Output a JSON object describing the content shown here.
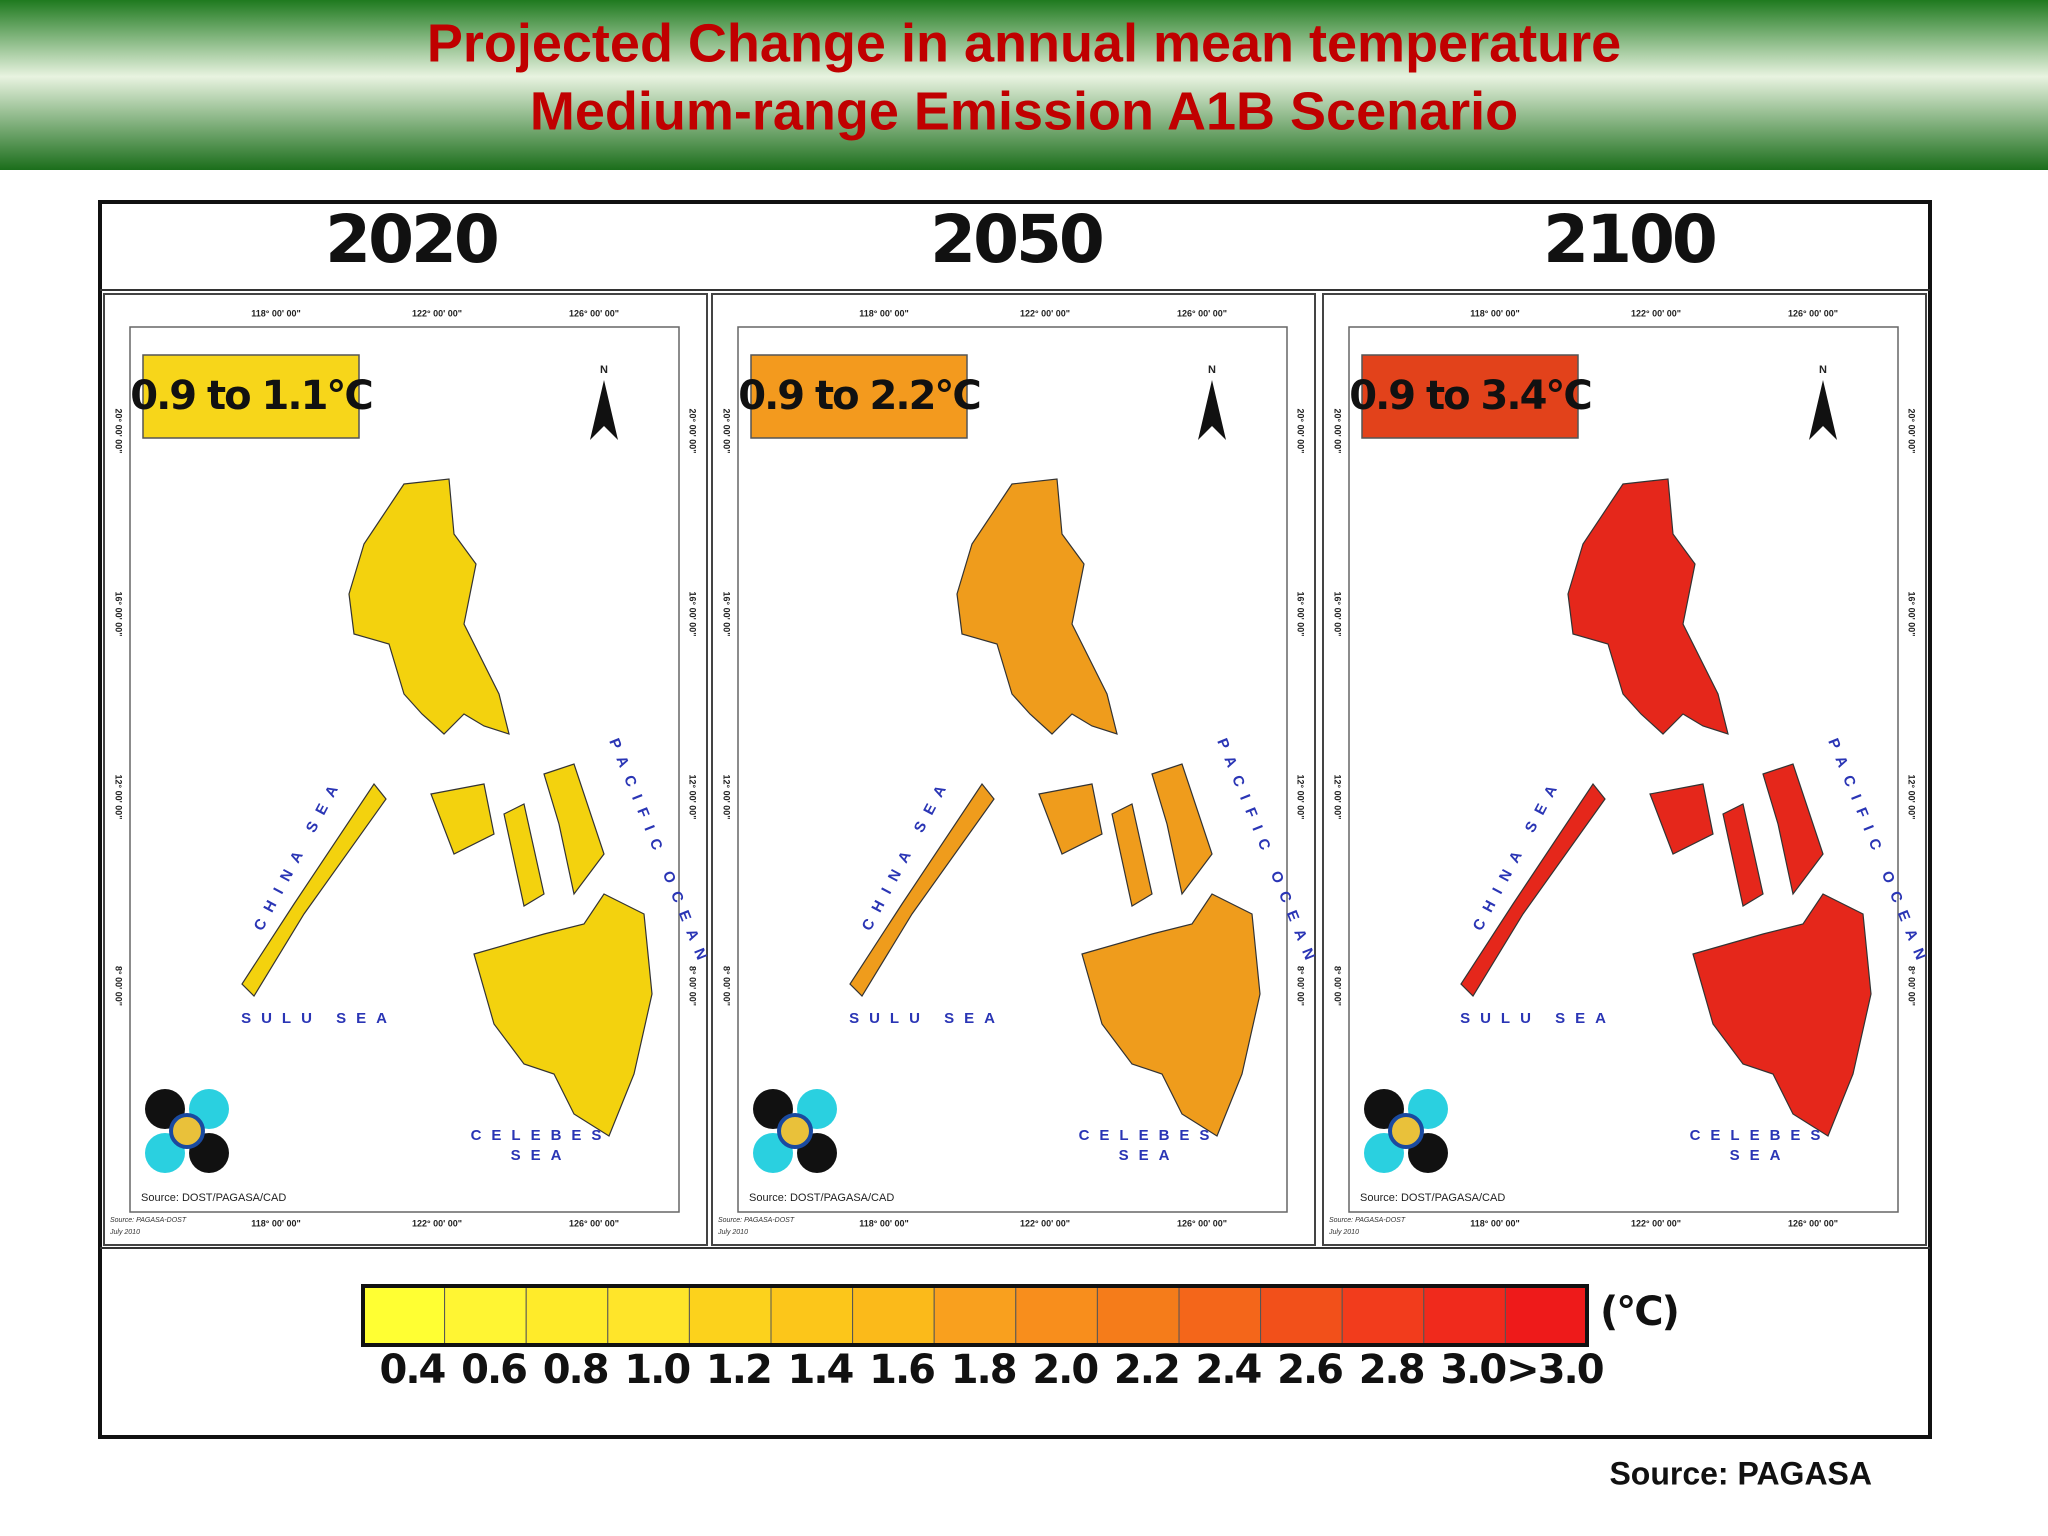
{
  "header": {
    "title_lines": [
      "Projected Change in annual mean temperature",
      "Medium-range Emission A1B  Scenario"
    ]
  },
  "panels": [
    {
      "year": "2020",
      "range": "0.9 to 1.1°C",
      "map_color": "#f3d20e",
      "range_color": "#f7d61a"
    },
    {
      "year": "2050",
      "range": "0.9 to 2.2°C",
      "map_color": "#ef9c1c",
      "range_color": "#f39a1e"
    },
    {
      "year": "2100",
      "range": "0.9 to 3.4°C",
      "map_color": "#e5271b",
      "range_color": "#e2421b"
    }
  ],
  "map_labels": {
    "north": "N",
    "china_sea": "CHINA SEA",
    "pacific_ocean": "PACIFIC OCEAN",
    "sulu_sea": "SULU SEA",
    "celebes_sea": [
      "CELEBES",
      "SEA"
    ],
    "longitudes": [
      "118° 00' 00\"",
      "122° 00' 00\"",
      "126° 00' 00\""
    ],
    "latitudes": [
      "20° 00' 00\"",
      "16° 00' 00\"",
      "12° 00' 00\"",
      "8° 00' 00\""
    ],
    "map_source": "Source: DOST/PAGASA/CAD",
    "credit": [
      "Source: PAGASA-DOST",
      "July 2010"
    ]
  },
  "legend": {
    "labels": [
      "0.4",
      "0.6",
      "0.8",
      "1.0",
      "1.2",
      "1.4",
      "1.6",
      "1.8",
      "2.0",
      "2.2",
      "2.4",
      "2.6",
      "2.8",
      "3.0",
      ">3.0"
    ],
    "colors": [
      "#ffff33",
      "#fff533",
      "#ffeb2a",
      "#ffe52a",
      "#fcd21c",
      "#fcc61a",
      "#fbba1a",
      "#f9a01e",
      "#f88e1c",
      "#f57c1a",
      "#f4661a",
      "#f2501a",
      "#f23c1c",
      "#f02a1c",
      "#ee1a1a"
    ],
    "unit": "(°C)"
  },
  "source": "Source: PAGASA"
}
